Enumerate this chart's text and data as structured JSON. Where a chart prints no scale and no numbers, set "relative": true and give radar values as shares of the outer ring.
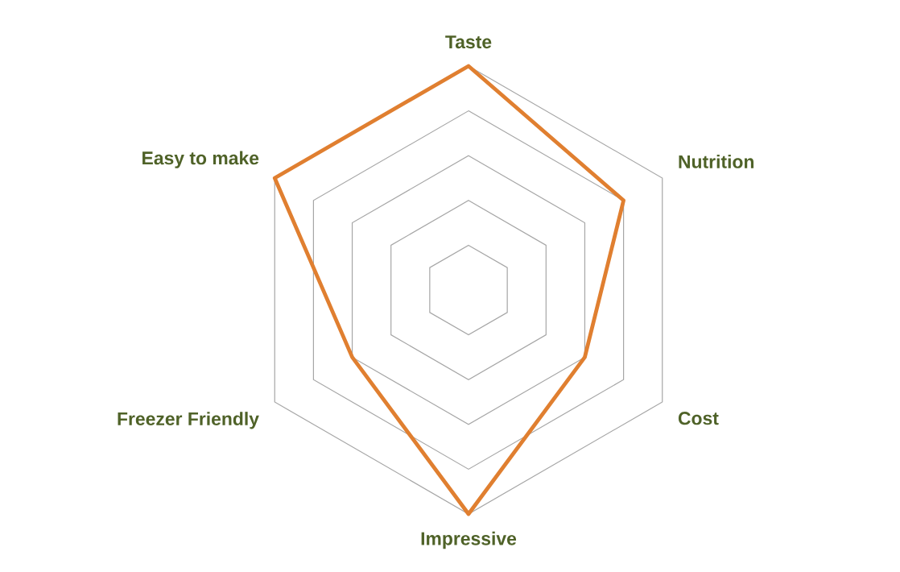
{
  "chart_data": {
    "type": "radar",
    "relative": true,
    "grid": true,
    "categories": [
      "Taste",
      "Nutrition",
      "Cost",
      "Impressive",
      "Freezer Friendly",
      "Easy to make"
    ],
    "series": [
      {
        "color": "#e07f30",
        "values": [
          1,
          0.8,
          0.6,
          1,
          0.6,
          1
        ]
      }
    ]
  }
}
